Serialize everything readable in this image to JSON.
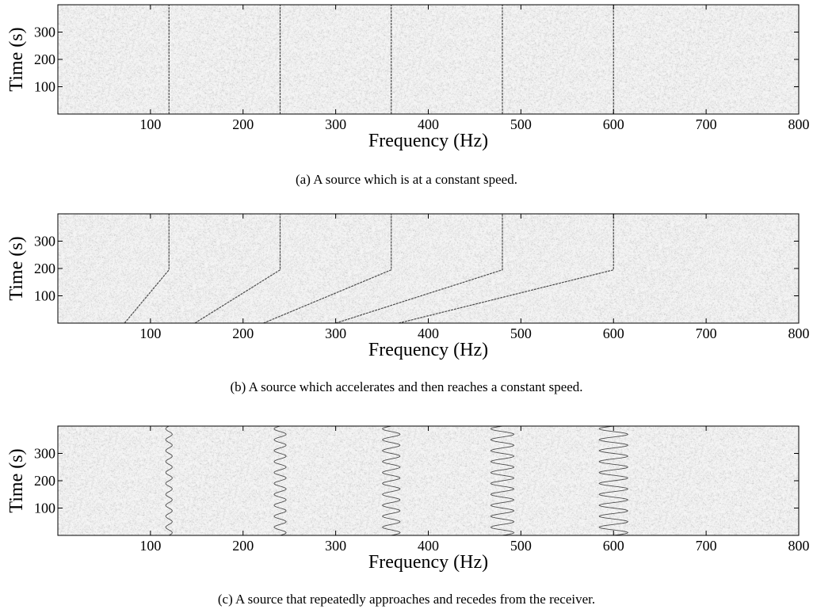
{
  "chart_data": [
    {
      "type": "heatmap",
      "caption": "(a) A source which is at a constant speed.",
      "xlabel": "Frequency (Hz)",
      "ylabel": "Time (s)",
      "xlim": [
        0,
        800
      ],
      "ylim": [
        0,
        400
      ],
      "xticks": [
        100,
        200,
        300,
        400,
        500,
        600,
        700,
        800
      ],
      "yticks": [
        100,
        200,
        300
      ],
      "grid": false,
      "pattern": "constant",
      "harmonics": [
        120,
        240,
        360,
        480,
        600
      ]
    },
    {
      "type": "heatmap",
      "caption": "(b) A source which accelerates and then reaches a constant speed.",
      "xlabel": "Frequency (Hz)",
      "ylabel": "Time (s)",
      "xlim": [
        0,
        800
      ],
      "ylim": [
        0,
        400
      ],
      "xticks": [
        100,
        200,
        300,
        400,
        500,
        600,
        700,
        800
      ],
      "yticks": [
        100,
        200,
        300
      ],
      "grid": false,
      "pattern": "accelerate",
      "harmonics": [
        120,
        240,
        360,
        480,
        600
      ],
      "start_frequencies": [
        72,
        148,
        222,
        300,
        368
      ],
      "transition_time": 195
    },
    {
      "type": "heatmap",
      "caption": "(c) A source that repeatedly approaches and recedes from the receiver.",
      "xlabel": "Frequency (Hz)",
      "ylabel": "Time (s)",
      "xlim": [
        0,
        800
      ],
      "ylim": [
        0,
        400
      ],
      "xticks": [
        100,
        200,
        300,
        400,
        500,
        600,
        700,
        800
      ],
      "yticks": [
        100,
        200,
        300
      ],
      "grid": false,
      "pattern": "oscillate",
      "harmonics": [
        120,
        240,
        360,
        480,
        600
      ],
      "amplitudes": [
        3.5,
        6.5,
        9.5,
        12.5,
        15.5
      ],
      "oscillation_period": 40
    }
  ]
}
